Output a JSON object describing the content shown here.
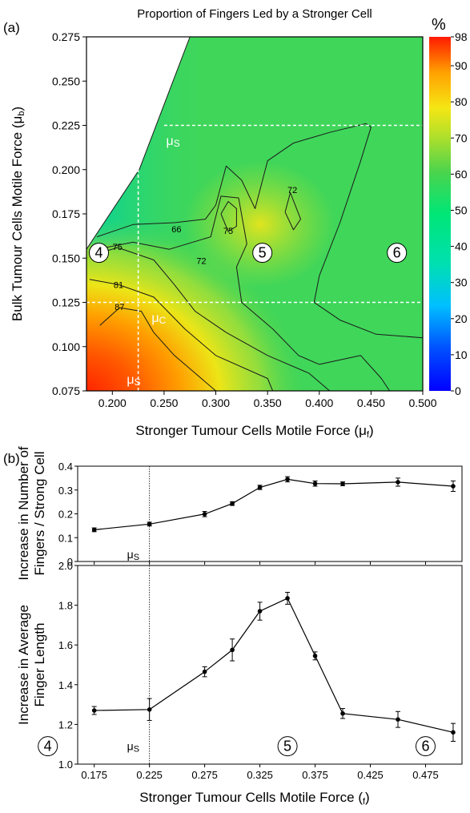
{
  "colors": {
    "contour": "#1a1a1a",
    "threshold": "#ffffff",
    "series": "#000000",
    "colorbar_stops": [
      "#0000ff",
      "#00bfff",
      "#00e676",
      "#4cd44c",
      "#b2e02a",
      "#f5e614",
      "#ffa000",
      "#ff1a00"
    ]
  },
  "chart_data": [
    {
      "type": "heatmap",
      "panel_tag": "(a)",
      "title": "Proportion of Fingers Led by a Stronger Cell",
      "xlabel": "Stronger Tumour Cells Motile Force (μ",
      "xlabel_sub": "f",
      "ylabel": "Bulk Tumour Cells Motile Force (μ",
      "ylabel_sub": "b",
      "xlim": [
        0.175,
        0.5
      ],
      "ylim": [
        0.075,
        0.275
      ],
      "x_ticks": [
        "0.200",
        "0.250",
        "0.300",
        "0.350",
        "0.400",
        "0.450",
        "0.500"
      ],
      "y_ticks": [
        "0.075",
        "0.100",
        "0.125",
        "0.150",
        "0.175",
        "0.200",
        "0.225",
        "0.250",
        "0.275"
      ],
      "colorbar": {
        "unit": "%",
        "range": [
          0,
          98
        ],
        "ticks": [
          "0",
          "10",
          "20",
          "30",
          "40",
          "50",
          "60",
          "70",
          "80",
          "90",
          "98"
        ]
      },
      "valid_region_boundary": [
        [
          0.175,
          0.155
        ],
        [
          0.226,
          0.2
        ],
        [
          0.275,
          0.275
        ]
      ],
      "contour_levels": [
        {
          "level": 66,
          "label": "66",
          "label_at": [
            0.262,
            0.1665
          ],
          "points": [
            [
              0.185,
              0.162
            ],
            [
              0.22,
              0.169
            ],
            [
              0.26,
              0.17
            ],
            [
              0.29,
              0.172
            ],
            [
              0.3,
              0.18
            ],
            [
              0.31,
              0.202
            ],
            [
              0.325,
              0.194
            ],
            [
              0.338,
              0.178
            ],
            [
              0.35,
              0.205
            ],
            [
              0.375,
              0.215
            ],
            [
              0.41,
              0.221
            ],
            [
              0.445,
              0.226
            ],
            [
              0.45,
              0.224
            ],
            [
              0.44,
              0.205
            ],
            [
              0.42,
              0.17
            ],
            [
              0.4,
              0.14
            ],
            [
              0.395,
              0.125
            ],
            [
              0.42,
              0.115
            ],
            [
              0.455,
              0.107
            ],
            [
              0.5,
              0.105
            ]
          ]
        },
        {
          "level": 72,
          "label": "72",
          "label_at": [
            0.286,
            0.1485
          ],
          "points": [
            [
              0.185,
              0.155
            ],
            [
              0.22,
              0.159
            ],
            [
              0.255,
              0.155
            ],
            [
              0.295,
              0.162
            ],
            [
              0.305,
              0.185
            ],
            [
              0.322,
              0.184
            ],
            [
              0.33,
              0.158
            ],
            [
              0.32,
              0.145
            ],
            [
              0.325,
              0.125
            ],
            [
              0.355,
              0.11
            ],
            [
              0.38,
              0.095
            ],
            [
              0.4,
              0.09
            ],
            [
              0.44,
              0.095
            ],
            [
              0.46,
              0.082
            ],
            [
              0.468,
              0.075
            ]
          ]
        },
        {
          "level": 72,
          "label": "72",
          "label_at": [
            0.374,
            0.1885
          ],
          "points": [
            [
              0.367,
              0.176
            ],
            [
              0.372,
              0.187
            ],
            [
              0.382,
              0.172
            ],
            [
              0.375,
              0.166
            ],
            [
              0.367,
              0.176
            ]
          ]
        },
        {
          "level": 75,
          "label": "75",
          "label_at": [
            0.312,
            0.1655
          ],
          "points": [
            [
              0.305,
              0.175
            ],
            [
              0.312,
              0.182
            ],
            [
              0.32,
              0.178
            ],
            [
              0.32,
              0.168
            ],
            [
              0.312,
              0.165
            ],
            [
              0.305,
              0.175
            ]
          ]
        },
        {
          "level": 75,
          "label": "75",
          "label_at": [
            0.205,
            0.1565
          ],
          "points": [
            [
              0.178,
              0.151
            ],
            [
              0.205,
              0.156
            ],
            [
              0.24,
              0.149
            ],
            [
              0.26,
              0.135
            ],
            [
              0.28,
              0.12
            ],
            [
              0.31,
              0.108
            ],
            [
              0.35,
              0.095
            ],
            [
              0.39,
              0.085
            ],
            [
              0.41,
              0.075
            ]
          ]
        },
        {
          "level": 81,
          "label": "81",
          "label_at": [
            0.206,
            0.135
          ],
          "points": [
            [
              0.178,
              0.138
            ],
            [
              0.206,
              0.135
            ],
            [
              0.24,
              0.128
            ],
            [
              0.27,
              0.11
            ],
            [
              0.3,
              0.095
            ],
            [
              0.35,
              0.082
            ],
            [
              0.355,
              0.075
            ]
          ]
        },
        {
          "level": 87,
          "label": "87",
          "label_at": [
            0.207,
            0.1225
          ],
          "points": [
            [
              0.188,
              0.112
            ],
            [
              0.207,
              0.122
            ],
            [
              0.228,
              0.12
            ],
            [
              0.24,
              0.108
            ],
            [
              0.26,
              0.095
            ],
            [
              0.28,
              0.085
            ],
            [
              0.3,
              0.075
            ]
          ]
        }
      ],
      "thresholds": {
        "vertical": {
          "x": 0.225,
          "y_range": [
            0.075,
            0.2
          ]
        },
        "horizontal": [
          {
            "y": 0.125,
            "x_range": [
              0.175,
              0.5
            ]
          },
          {
            "y": 0.225,
            "x_range": [
              0.25,
              0.5
            ]
          }
        ]
      },
      "annotations": [
        {
          "text": "μ",
          "sub": "S",
          "x": 0.214,
          "y": 0.079
        },
        {
          "text": "μ",
          "sub": "C",
          "x": 0.238,
          "y": 0.114
        },
        {
          "text": "μ",
          "sub": "S",
          "x": 0.252,
          "y": 0.214
        }
      ],
      "regions": [
        {
          "label": "4",
          "x": 0.187,
          "y": 0.153
        },
        {
          "label": "5",
          "x": 0.345,
          "y": 0.153
        },
        {
          "label": "6",
          "x": 0.475,
          "y": 0.153
        }
      ]
    },
    {
      "type": "line",
      "panel_tag": "(b)",
      "ylabel_lines": [
        "Increase in Number of",
        "Fingers / Strong Cell"
      ],
      "xlim": [
        0.16,
        0.508
      ],
      "ylim": [
        0,
        0.4
      ],
      "y_ticks": [
        "0",
        "0.1",
        "0.2",
        "0.3",
        "0.4"
      ],
      "y_tick_values": [
        0,
        0.1,
        0.2,
        0.3,
        0.4
      ],
      "x": [
        0.175,
        0.225,
        0.275,
        0.3,
        0.325,
        0.35,
        0.375,
        0.4,
        0.45,
        0.5
      ],
      "values": [
        0.133,
        0.157,
        0.199,
        0.243,
        0.311,
        0.345,
        0.327,
        0.326,
        0.333,
        0.316
      ],
      "errors": [
        0.008,
        0.008,
        0.011,
        0.008,
        0.009,
        0.011,
        0.011,
        0.008,
        0.017,
        0.022
      ],
      "vline": {
        "x": 0.225,
        "label": "μ",
        "label_sub": "S",
        "label_y": 0.03
      }
    },
    {
      "type": "line",
      "ylabel_lines": [
        "Increase in Average",
        "Finger Length"
      ],
      "xlabel": "Stronger Tumour Cells Motile Force (",
      "xlabel_sub": "f",
      "xlim": [
        0.16,
        0.508
      ],
      "ylim": [
        1.0,
        2.0
      ],
      "y_ticks": [
        "1.0",
        "1.2",
        "1.4",
        "1.6",
        "1.8",
        "2.0"
      ],
      "y_tick_values": [
        1.0,
        1.2,
        1.4,
        1.6,
        1.8,
        2.0
      ],
      "x_ticks": [
        "0.175",
        "0.225",
        "0.275",
        "0.325",
        "0.375",
        "0.425",
        "0.475"
      ],
      "x_tick_values": [
        0.175,
        0.225,
        0.275,
        0.325,
        0.375,
        0.425,
        0.475
      ],
      "x": [
        0.175,
        0.225,
        0.275,
        0.3,
        0.325,
        0.35,
        0.375,
        0.4,
        0.45,
        0.5
      ],
      "values": [
        1.27,
        1.275,
        1.465,
        1.575,
        1.77,
        1.835,
        1.545,
        1.255,
        1.225,
        1.16
      ],
      "errors": [
        0.02,
        0.055,
        0.025,
        0.055,
        0.045,
        0.03,
        0.02,
        0.025,
        0.04,
        0.045
      ],
      "vline": {
        "x": 0.225,
        "label": "μ",
        "label_sub": "S",
        "label_y": 1.09
      },
      "regions": [
        {
          "label": "4",
          "x": 0.175,
          "y": 1.09
        },
        {
          "label": "5",
          "x": 0.35,
          "y": 1.09
        },
        {
          "label": "6",
          "x": 0.475,
          "y": 1.09
        }
      ]
    }
  ]
}
